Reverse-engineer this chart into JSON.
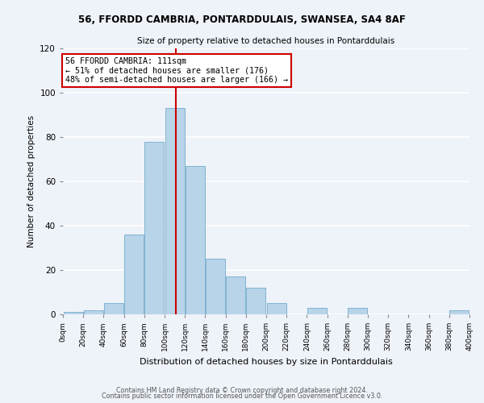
{
  "title1": "56, FFORDD CAMBRIA, PONTARDDULAIS, SWANSEA, SA4 8AF",
  "title2": "Size of property relative to detached houses in Pontarddulais",
  "xlabel": "Distribution of detached houses by size in Pontarddulais",
  "ylabel": "Number of detached properties",
  "bin_edges": [
    0,
    20,
    40,
    60,
    80,
    100,
    120,
    140,
    160,
    180,
    200,
    220,
    240,
    260,
    280,
    300,
    320,
    340,
    360,
    380,
    400
  ],
  "bar_heights": [
    1,
    2,
    5,
    36,
    78,
    93,
    67,
    25,
    17,
    12,
    5,
    0,
    3,
    0,
    3,
    0,
    0,
    0,
    0,
    2
  ],
  "bar_color": "#b8d4e8",
  "bar_edge_color": "#7fb3d3",
  "vline_x": 111,
  "vline_color": "#cc0000",
  "annotation_title": "56 FFORDD CAMBRIA: 111sqm",
  "annotation_line1": "← 51% of detached houses are smaller (176)",
  "annotation_line2": "48% of semi-detached houses are larger (166) →",
  "annotation_box_color": "#ffffff",
  "annotation_box_edge": "#cc0000",
  "ylim": [
    0,
    120
  ],
  "xlim": [
    0,
    400
  ],
  "footer1": "Contains HM Land Registry data © Crown copyright and database right 2024.",
  "footer2": "Contains public sector information licensed under the Open Government Licence v3.0.",
  "background_color": "#eef2f9",
  "grid_color": "#ffffff",
  "yticks": [
    0,
    20,
    40,
    60,
    80,
    100,
    120
  ]
}
